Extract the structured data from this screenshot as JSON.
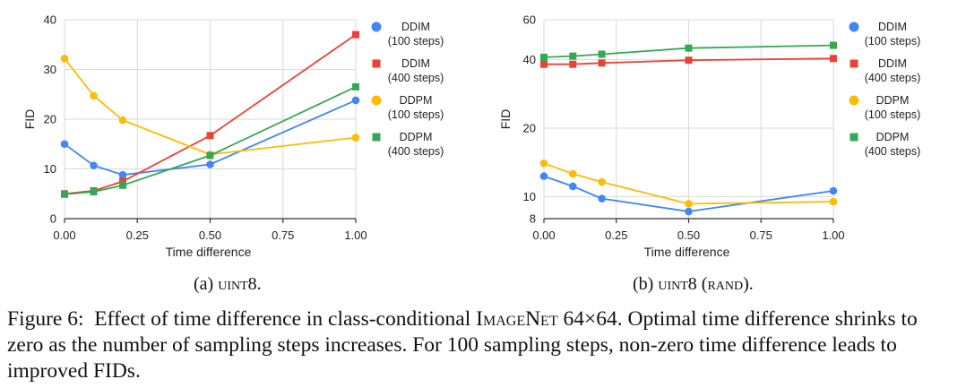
{
  "chart_data": [
    {
      "type": "line",
      "x": [
        0.0,
        0.1,
        0.2,
        0.5,
        1.0
      ],
      "xticks": [
        "0.00",
        "0.25",
        "0.50",
        "0.75",
        "1.00"
      ],
      "xtick_values": [
        0,
        0.25,
        0.5,
        0.75,
        1.0
      ],
      "xlabel": "Time difference",
      "ylabel": "FID",
      "yscale": "linear",
      "ylim": [
        0,
        40
      ],
      "yticks": [
        "0",
        "10",
        "20",
        "30",
        "40"
      ],
      "ytick_values": [
        0,
        10,
        20,
        30,
        40
      ],
      "xlim": [
        0,
        1.0
      ],
      "series": [
        {
          "name": "DDIM",
          "steps": "(100 steps)",
          "color": "#4285F4",
          "marker": "circle",
          "values": [
            15.0,
            10.7,
            8.8,
            10.9,
            23.8
          ]
        },
        {
          "name": "DDIM",
          "steps": "(400 steps)",
          "color": "#EA4335",
          "marker": "square",
          "values": [
            5.0,
            5.6,
            7.5,
            16.7,
            37.0
          ]
        },
        {
          "name": "DDPM",
          "steps": "(100 steps)",
          "color": "#FBBC04",
          "marker": "circle",
          "values": [
            32.2,
            24.7,
            19.8,
            12.9,
            16.3
          ]
        },
        {
          "name": "DDPM",
          "steps": "(400 steps)",
          "color": "#34A853",
          "marker": "square",
          "values": [
            4.9,
            5.4,
            6.7,
            12.7,
            26.5
          ]
        }
      ]
    },
    {
      "type": "line",
      "x": [
        0.0,
        0.1,
        0.2,
        0.5,
        1.0
      ],
      "xticks": [
        "0.00",
        "0.25",
        "0.50",
        "0.75",
        "1.00"
      ],
      "xtick_values": [
        0,
        0.25,
        0.5,
        0.75,
        1.0
      ],
      "xlabel": "Time difference",
      "ylabel": "FID",
      "yscale": "log",
      "ylim": [
        8,
        60
      ],
      "yticks": [
        "8",
        "10",
        "20",
        "40",
        "60"
      ],
      "ytick_values": [
        8,
        10,
        20,
        40,
        60
      ],
      "xlim": [
        0,
        1.0
      ],
      "series": [
        {
          "name": "DDIM",
          "steps": "(100 steps)",
          "color": "#4285F4",
          "marker": "circle",
          "values": [
            12.3,
            11.1,
            9.8,
            8.6,
            10.6
          ]
        },
        {
          "name": "DDIM",
          "steps": "(400 steps)",
          "color": "#EA4335",
          "marker": "square",
          "values": [
            38.2,
            38.2,
            38.7,
            39.8,
            40.5
          ]
        },
        {
          "name": "DDPM",
          "steps": "(100 steps)",
          "color": "#FBBC04",
          "marker": "circle",
          "values": [
            14.0,
            12.6,
            11.6,
            9.3,
            9.5
          ]
        },
        {
          "name": "DDPM",
          "steps": "(400 steps)",
          "color": "#34A853",
          "marker": "square",
          "values": [
            41.0,
            41.5,
            42.3,
            45.0,
            46.3
          ]
        }
      ]
    }
  ],
  "subcaptions": [
    {
      "prefix": "(a) ",
      "name": "uint8",
      "suffix": "."
    },
    {
      "prefix": "(b) ",
      "name": "uint8",
      "mid": " (",
      "name2": "rand",
      "suffix": ")."
    }
  ],
  "caption": {
    "label": "Figure 6:",
    "part1": "Effect of time difference in class-conditional ",
    "dataset": "ImageNet",
    "part2": " 64×64. Optimal time difference shrinks to zero as the number of sampling steps increases. For 100 sampling steps, non-zero time difference leads to improved FIDs."
  }
}
